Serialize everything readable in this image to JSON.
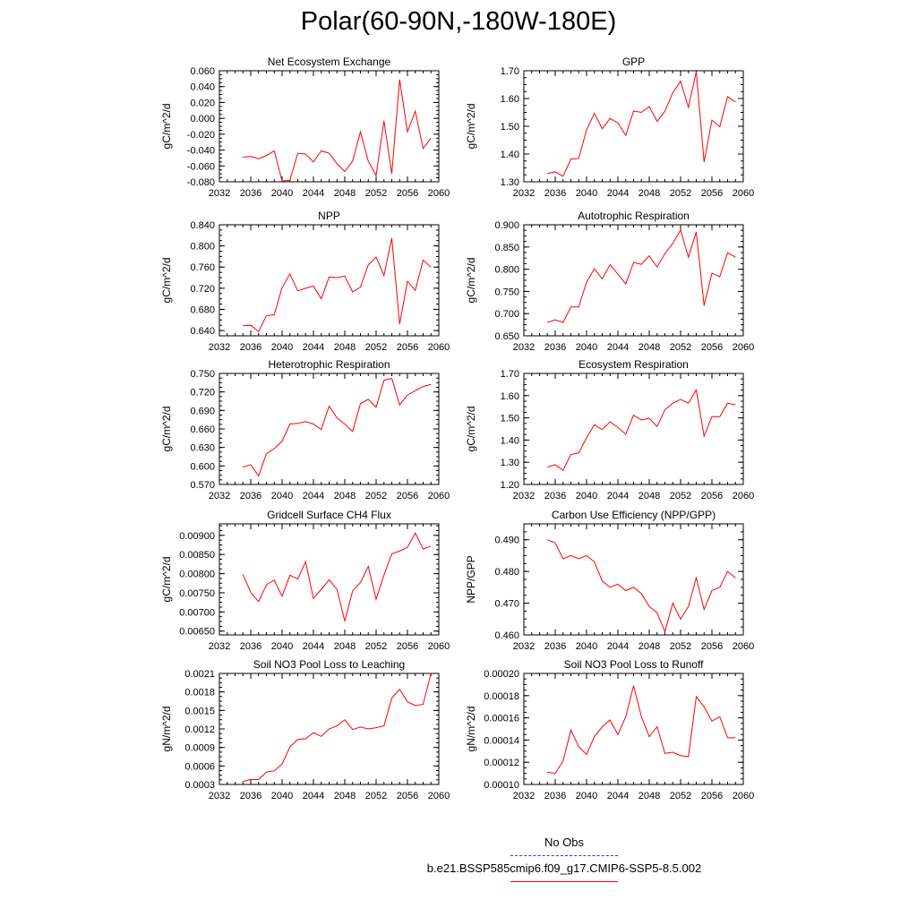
{
  "page": {
    "title": "Polar(60-90N,-180W-180E)"
  },
  "legend": {
    "obs_label": "No Obs",
    "model_label": "b.e21.BSSP585cmip6.f09_g17.CMIP6-SSP5-8.5.002",
    "obs_color": "#3333cc",
    "model_color": "#ff0000"
  },
  "chart_data": [
    {
      "type": "line",
      "title": "Net Ecosystem Exchange",
      "xlabel": "",
      "ylabel": "gC/m^2/d",
      "xlim": [
        2032,
        2060
      ],
      "ylim": [
        -0.08,
        0.06
      ],
      "xticks": [
        "2032",
        "2036",
        "2040",
        "2044",
        "2048",
        "2052",
        "2056",
        "2060"
      ],
      "yticks": [
        "-0.080",
        "-0.060",
        "-0.040",
        "-0.020",
        "0.000",
        "0.020",
        "0.040",
        "0.060"
      ],
      "x": [
        2035,
        2036,
        2037,
        2038,
        2039,
        2040,
        2041,
        2042,
        2043,
        2044,
        2045,
        2046,
        2047,
        2048,
        2049,
        2050,
        2051,
        2052,
        2053,
        2054,
        2055,
        2056,
        2057,
        2058,
        2059
      ],
      "series": [
        {
          "values": [
            -0.049,
            -0.048,
            -0.051,
            -0.047,
            -0.041,
            -0.079,
            -0.078,
            -0.044,
            -0.045,
            -0.055,
            -0.041,
            -0.044,
            -0.057,
            -0.067,
            -0.054,
            -0.017,
            -0.054,
            -0.072,
            -0.003,
            -0.07,
            0.049,
            -0.017,
            0.009,
            -0.038,
            -0.025
          ],
          "color": "#ff0000"
        }
      ]
    },
    {
      "type": "line",
      "title": "GPP",
      "xlabel": "",
      "ylabel": "gC/m^2/d",
      "xlim": [
        2032,
        2060
      ],
      "ylim": [
        1.3,
        1.7
      ],
      "xticks": [
        "2032",
        "2036",
        "2040",
        "2044",
        "2048",
        "2052",
        "2056",
        "2060"
      ],
      "yticks": [
        "1.30",
        "1.40",
        "1.50",
        "1.60",
        "1.70"
      ],
      "x": [
        2035,
        2036,
        2037,
        2038,
        2039,
        2040,
        2041,
        2042,
        2043,
        2044,
        2045,
        2046,
        2047,
        2048,
        2049,
        2050,
        2051,
        2052,
        2053,
        2054,
        2055,
        2056,
        2057,
        2058,
        2059
      ],
      "series": [
        {
          "values": [
            1.33,
            1.336,
            1.32,
            1.382,
            1.384,
            1.487,
            1.547,
            1.491,
            1.528,
            1.512,
            1.467,
            1.555,
            1.55,
            1.571,
            1.518,
            1.554,
            1.621,
            1.662,
            1.568,
            1.697,
            1.371,
            1.522,
            1.498,
            1.607,
            1.587
          ],
          "color": "#ff0000"
        }
      ]
    },
    {
      "type": "line",
      "title": "NPP",
      "xlabel": "",
      "ylabel": "gC/m^2/d",
      "xlim": [
        2032,
        2060
      ],
      "ylim": [
        0.63,
        0.84
      ],
      "xticks": [
        "2032",
        "2036",
        "2040",
        "2044",
        "2048",
        "2052",
        "2056",
        "2060"
      ],
      "yticks": [
        "0.640",
        "0.680",
        "0.720",
        "0.760",
        "0.800",
        "0.840"
      ],
      "x": [
        2035,
        2036,
        2037,
        2038,
        2039,
        2040,
        2041,
        2042,
        2043,
        2044,
        2045,
        2046,
        2047,
        2048,
        2049,
        2050,
        2051,
        2052,
        2053,
        2054,
        2055,
        2056,
        2057,
        2058,
        2059
      ],
      "series": [
        {
          "values": [
            0.649,
            0.65,
            0.638,
            0.668,
            0.67,
            0.721,
            0.747,
            0.715,
            0.72,
            0.724,
            0.7,
            0.741,
            0.74,
            0.743,
            0.713,
            0.722,
            0.764,
            0.779,
            0.744,
            0.815,
            0.652,
            0.733,
            0.716,
            0.773,
            0.76
          ],
          "color": "#ff0000"
        }
      ]
    },
    {
      "type": "line",
      "title": "Autotrophic Respiration",
      "xlabel": "",
      "ylabel": "gC/m^2/d",
      "xlim": [
        2032,
        2060
      ],
      "ylim": [
        0.65,
        0.9
      ],
      "xticks": [
        "2032",
        "2036",
        "2040",
        "2044",
        "2048",
        "2052",
        "2056",
        "2060"
      ],
      "yticks": [
        "0.650",
        "0.700",
        "0.750",
        "0.800",
        "0.850",
        "0.900"
      ],
      "x": [
        2035,
        2036,
        2037,
        2038,
        2039,
        2040,
        2041,
        2042,
        2043,
        2044,
        2045,
        2046,
        2047,
        2048,
        2049,
        2050,
        2051,
        2052,
        2053,
        2054,
        2055,
        2056,
        2057,
        2058,
        2059
      ],
      "series": [
        {
          "values": [
            0.68,
            0.686,
            0.68,
            0.715,
            0.715,
            0.771,
            0.801,
            0.778,
            0.81,
            0.789,
            0.767,
            0.815,
            0.811,
            0.83,
            0.805,
            0.835,
            0.858,
            0.888,
            0.827,
            0.884,
            0.718,
            0.791,
            0.783,
            0.837,
            0.827
          ],
          "color": "#ff0000"
        }
      ]
    },
    {
      "type": "line",
      "title": "Heterotrophic Respiration",
      "xlabel": "",
      "ylabel": "gC/m^2/d",
      "xlim": [
        2032,
        2060
      ],
      "ylim": [
        0.57,
        0.75
      ],
      "xticks": [
        "2032",
        "2036",
        "2040",
        "2044",
        "2048",
        "2052",
        "2056",
        "2060"
      ],
      "yticks": [
        "0.570",
        "0.600",
        "0.630",
        "0.660",
        "0.690",
        "0.720",
        "0.750"
      ],
      "x": [
        2035,
        2036,
        2037,
        2038,
        2039,
        2040,
        2041,
        2042,
        2043,
        2044,
        2045,
        2046,
        2047,
        2048,
        2049,
        2050,
        2051,
        2052,
        2053,
        2054,
        2055,
        2056,
        2057,
        2058,
        2059
      ],
      "series": [
        {
          "values": [
            0.598,
            0.602,
            0.584,
            0.62,
            0.628,
            0.64,
            0.668,
            0.669,
            0.672,
            0.668,
            0.659,
            0.697,
            0.678,
            0.668,
            0.656,
            0.701,
            0.708,
            0.695,
            0.739,
            0.742,
            0.699,
            0.715,
            0.722,
            0.729,
            0.732
          ],
          "color": "#ff0000"
        }
      ]
    },
    {
      "type": "line",
      "title": "Ecosystem Respiration",
      "xlabel": "",
      "ylabel": "gC/m^2/d",
      "xlim": [
        2032,
        2060
      ],
      "ylim": [
        1.2,
        1.7
      ],
      "xticks": [
        "2032",
        "2036",
        "2040",
        "2044",
        "2048",
        "2052",
        "2056",
        "2060"
      ],
      "yticks": [
        "1.20",
        "1.30",
        "1.40",
        "1.50",
        "1.60",
        "1.70"
      ],
      "x": [
        2035,
        2036,
        2037,
        2038,
        2039,
        2040,
        2041,
        2042,
        2043,
        2044,
        2045,
        2046,
        2047,
        2048,
        2049,
        2050,
        2051,
        2052,
        2053,
        2054,
        2055,
        2056,
        2057,
        2058,
        2059
      ],
      "series": [
        {
          "values": [
            1.278,
            1.289,
            1.264,
            1.335,
            1.342,
            1.41,
            1.469,
            1.447,
            1.482,
            1.457,
            1.426,
            1.512,
            1.49,
            1.498,
            1.461,
            1.536,
            1.566,
            1.583,
            1.566,
            1.626,
            1.417,
            1.506,
            1.505,
            1.566,
            1.559
          ],
          "color": "#ff0000"
        }
      ]
    },
    {
      "type": "line",
      "title": "Gridcell Surface CH4 Flux",
      "xlabel": "",
      "ylabel": "gC/m^2/d",
      "xlim": [
        2032,
        2060
      ],
      "ylim": [
        0.0064,
        0.0093
      ],
      "xticks": [
        "2032",
        "2036",
        "2040",
        "2044",
        "2048",
        "2052",
        "2056",
        "2060"
      ],
      "yticks": [
        "0.00650",
        "0.00700",
        "0.00750",
        "0.00800",
        "0.00850",
        "0.00900"
      ],
      "x": [
        2035,
        2036,
        2037,
        2038,
        2039,
        2040,
        2041,
        2042,
        2043,
        2044,
        2045,
        2046,
        2047,
        2048,
        2049,
        2050,
        2051,
        2052,
        2053,
        2054,
        2055,
        2056,
        2057,
        2058,
        2059
      ],
      "series": [
        {
          "values": [
            0.00798,
            0.00751,
            0.00727,
            0.00771,
            0.00783,
            0.00741,
            0.00796,
            0.00786,
            0.00831,
            0.00735,
            0.00759,
            0.00784,
            0.00759,
            0.00676,
            0.00755,
            0.00777,
            0.00819,
            0.00733,
            0.00796,
            0.00852,
            0.00859,
            0.00869,
            0.00906,
            0.00864,
            0.00872
          ],
          "color": "#ff0000"
        }
      ]
    },
    {
      "type": "line",
      "title": "Carbon Use Efficiency (NPP/GPP)",
      "xlabel": "",
      "ylabel": "NPP/GPP",
      "xlim": [
        2032,
        2060
      ],
      "ylim": [
        0.46,
        0.495
      ],
      "xticks": [
        "2032",
        "2036",
        "2040",
        "2044",
        "2048",
        "2052",
        "2056",
        "2060"
      ],
      "yticks": [
        "0.460",
        "0.470",
        "0.480",
        "0.490"
      ],
      "x": [
        2035,
        2036,
        2037,
        2038,
        2039,
        2040,
        2041,
        2042,
        2043,
        2044,
        2045,
        2046,
        2047,
        2048,
        2049,
        2050,
        2051,
        2052,
        2053,
        2054,
        2055,
        2056,
        2057,
        2058,
        2059
      ],
      "series": [
        {
          "values": [
            0.49,
            0.489,
            0.484,
            0.485,
            0.484,
            0.485,
            0.483,
            0.477,
            0.475,
            0.476,
            0.474,
            0.475,
            0.473,
            0.469,
            0.467,
            0.461,
            0.47,
            0.465,
            0.469,
            0.478,
            0.468,
            0.474,
            0.475,
            0.48,
            0.478
          ],
          "color": "#ff0000"
        }
      ]
    },
    {
      "type": "line",
      "title": "Soil NO3 Pool Loss to Leaching",
      "xlabel": "",
      "ylabel": "gN/m^2/d",
      "xlim": [
        2032,
        2060
      ],
      "ylim": [
        0.0003,
        0.0021
      ],
      "xticks": [
        "2032",
        "2036",
        "2040",
        "2044",
        "2048",
        "2052",
        "2056",
        "2060"
      ],
      "yticks": [
        "0.0003",
        "0.0006",
        "0.0009",
        "0.0012",
        "0.0015",
        "0.0018",
        "0.0021"
      ],
      "x": [
        2035,
        2036,
        2037,
        2038,
        2039,
        2040,
        2041,
        2042,
        2043,
        2044,
        2045,
        2046,
        2047,
        2048,
        2049,
        2050,
        2051,
        2052,
        2053,
        2054,
        2055,
        2056,
        2057,
        2058,
        2059
      ],
      "series": [
        {
          "values": [
            0.00035,
            0.00038,
            0.00038,
            0.0005,
            0.00052,
            0.00063,
            0.00091,
            0.00103,
            0.00104,
            0.00114,
            0.00108,
            0.0012,
            0.00125,
            0.00135,
            0.00119,
            0.00123,
            0.0012,
            0.00122,
            0.00125,
            0.0017,
            0.00184,
            0.00164,
            0.00158,
            0.0016,
            0.0021
          ],
          "color": "#ff0000"
        }
      ]
    },
    {
      "type": "line",
      "title": "Soil NO3 Pool Loss to Runoff",
      "xlabel": "",
      "ylabel": "gN/m^2/d",
      "xlim": [
        2032,
        2060
      ],
      "ylim": [
        0.0001,
        0.0002
      ],
      "xticks": [
        "2032",
        "2036",
        "2040",
        "2044",
        "2048",
        "2052",
        "2056",
        "2060"
      ],
      "yticks": [
        "0.00010",
        "0.00012",
        "0.00014",
        "0.00016",
        "0.00018",
        "0.00020"
      ],
      "x": [
        2035,
        2036,
        2037,
        2038,
        2039,
        2040,
        2041,
        2042,
        2043,
        2044,
        2045,
        2046,
        2047,
        2048,
        2049,
        2050,
        2051,
        2052,
        2053,
        2054,
        2055,
        2056,
        2057,
        2058,
        2059
      ],
      "series": [
        {
          "values": [
            0.000111,
            0.00011,
            0.000121,
            0.000149,
            0.000134,
            0.000127,
            0.000143,
            0.000152,
            0.000158,
            0.000145,
            0.000161,
            0.000189,
            0.000161,
            0.000143,
            0.000152,
            0.000128,
            0.000129,
            0.000126,
            0.000125,
            0.000179,
            0.00017,
            0.000157,
            0.000161,
            0.000142,
            0.000142
          ],
          "color": "#ff0000"
        }
      ]
    }
  ]
}
